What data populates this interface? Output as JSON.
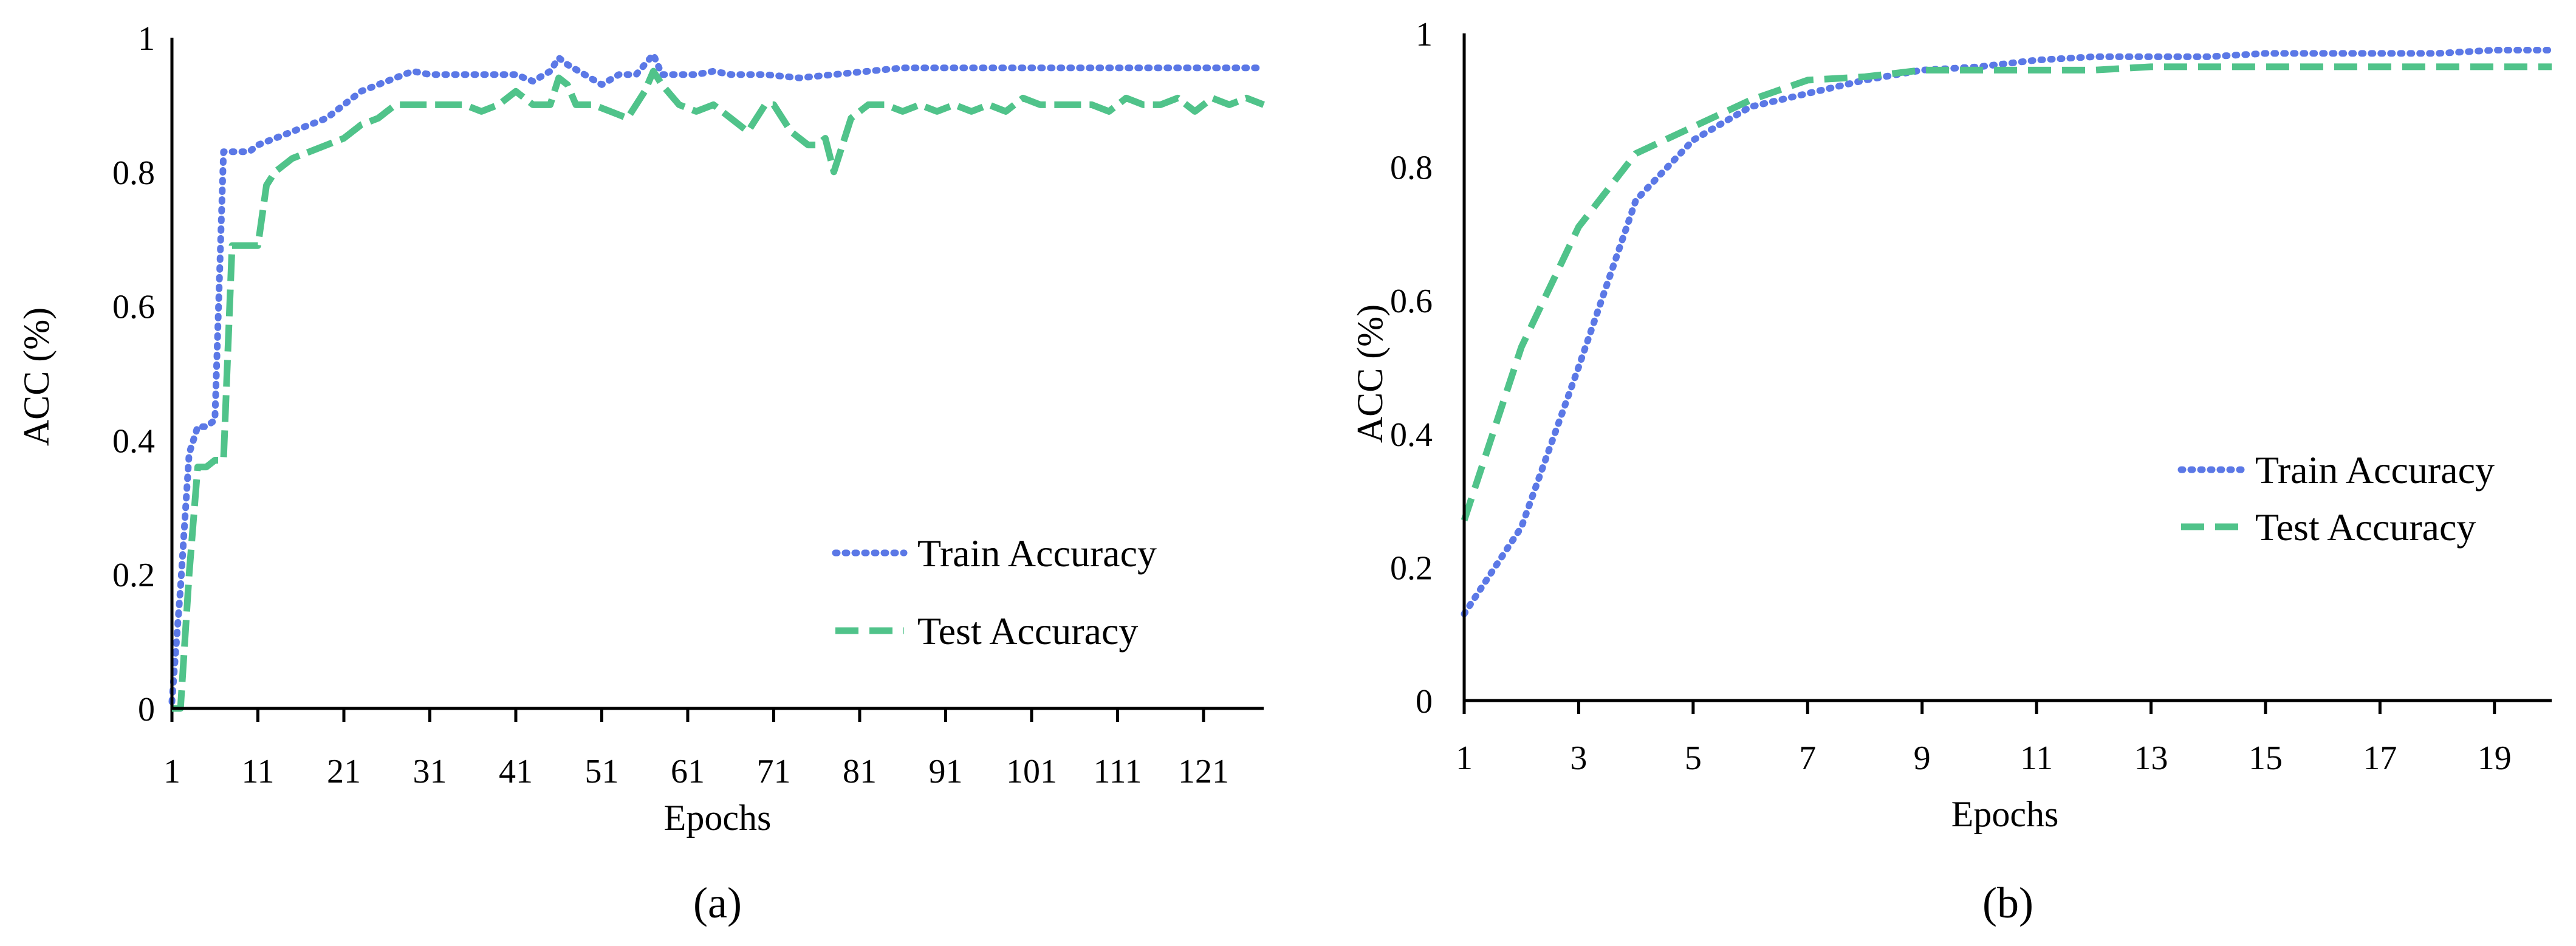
{
  "chart_data": [
    {
      "type": "line",
      "panel_label": "(a)",
      "xlabel": "Epochs",
      "ylabel": "ACC (%)",
      "xlim": [
        1,
        128
      ],
      "ylim": [
        0,
        1
      ],
      "xticks": [
        1,
        11,
        21,
        31,
        41,
        51,
        61,
        71,
        81,
        91,
        101,
        111,
        121
      ],
      "xtick_labels": [
        "1",
        "11",
        "21",
        "31",
        "41",
        "51",
        "61",
        "71",
        "81",
        "91",
        "101",
        "111",
        "121"
      ],
      "yticks": [
        0,
        0.2,
        0.4,
        0.6,
        0.8,
        1
      ],
      "ytick_labels": [
        "0",
        "0.2",
        "0.4",
        "0.6",
        "0.8",
        "1"
      ],
      "legend_position": "lower-right",
      "series": [
        {
          "name": "Train Accuracy",
          "label": "Train Accuracy",
          "color": "#5b78e6",
          "style": "dotted",
          "points": [
            [
              1,
              0.01
            ],
            [
              2,
              0.18
            ],
            [
              3,
              0.38
            ],
            [
              4,
              0.42
            ],
            [
              5,
              0.42
            ],
            [
              6,
              0.43
            ],
            [
              7,
              0.83
            ],
            [
              8,
              0.83
            ],
            [
              9,
              0.83
            ],
            [
              10,
              0.83
            ],
            [
              11,
              0.84
            ],
            [
              13,
              0.85
            ],
            [
              15,
              0.86
            ],
            [
              17,
              0.87
            ],
            [
              19,
              0.88
            ],
            [
              21,
              0.9
            ],
            [
              23,
              0.92
            ],
            [
              25,
              0.93
            ],
            [
              27,
              0.94
            ],
            [
              29,
              0.95
            ],
            [
              31,
              0.945
            ],
            [
              33,
              0.945
            ],
            [
              35,
              0.945
            ],
            [
              37,
              0.945
            ],
            [
              39,
              0.945
            ],
            [
              41,
              0.945
            ],
            [
              43,
              0.935
            ],
            [
              45,
              0.95
            ],
            [
              46,
              0.97
            ],
            [
              47,
              0.96
            ],
            [
              49,
              0.945
            ],
            [
              51,
              0.93
            ],
            [
              53,
              0.945
            ],
            [
              55,
              0.945
            ],
            [
              57,
              0.975
            ],
            [
              58,
              0.945
            ],
            [
              60,
              0.945
            ],
            [
              62,
              0.945
            ],
            [
              64,
              0.95
            ],
            [
              66,
              0.945
            ],
            [
              70,
              0.945
            ],
            [
              74,
              0.94
            ],
            [
              78,
              0.945
            ],
            [
              82,
              0.95
            ],
            [
              86,
              0.955
            ],
            [
              90,
              0.955
            ],
            [
              95,
              0.955
            ],
            [
              100,
              0.955
            ],
            [
              105,
              0.955
            ],
            [
              110,
              0.955
            ],
            [
              115,
              0.955
            ],
            [
              120,
              0.955
            ],
            [
              128,
              0.955
            ]
          ]
        },
        {
          "name": "Test Accuracy",
          "label": "Test Accuracy",
          "color": "#50c38a",
          "style": "mixed",
          "points": [
            [
              1,
              0.0
            ],
            [
              2,
              0.0
            ],
            [
              3,
              0.2
            ],
            [
              4,
              0.36
            ],
            [
              5,
              0.36
            ],
            [
              6,
              0.37
            ],
            [
              7,
              0.37
            ],
            [
              8,
              0.69
            ],
            [
              9,
              0.69
            ],
            [
              10,
              0.69
            ],
            [
              11,
              0.69
            ],
            [
              12,
              0.78
            ],
            [
              13,
              0.8
            ],
            [
              15,
              0.82
            ],
            [
              17,
              0.83
            ],
            [
              19,
              0.84
            ],
            [
              21,
              0.85
            ],
            [
              23,
              0.87
            ],
            [
              25,
              0.88
            ],
            [
              27,
              0.9
            ],
            [
              29,
              0.9
            ],
            [
              31,
              0.9
            ],
            [
              33,
              0.9
            ],
            [
              35,
              0.9
            ],
            [
              37,
              0.89
            ],
            [
              39,
              0.9
            ],
            [
              41,
              0.92
            ],
            [
              43,
              0.9
            ],
            [
              45,
              0.9
            ],
            [
              46,
              0.94
            ],
            [
              47,
              0.93
            ],
            [
              48,
              0.9
            ],
            [
              50,
              0.9
            ],
            [
              52,
              0.89
            ],
            [
              54,
              0.88
            ],
            [
              56,
              0.92
            ],
            [
              57,
              0.95
            ],
            [
              58,
              0.93
            ],
            [
              60,
              0.9
            ],
            [
              62,
              0.89
            ],
            [
              64,
              0.9
            ],
            [
              66,
              0.88
            ],
            [
              68,
              0.86
            ],
            [
              70,
              0.9
            ],
            [
              71,
              0.9
            ],
            [
              73,
              0.86
            ],
            [
              75,
              0.84
            ],
            [
              76,
              0.84
            ],
            [
              77,
              0.85
            ],
            [
              78,
              0.8
            ],
            [
              80,
              0.88
            ],
            [
              82,
              0.9
            ],
            [
              84,
              0.9
            ],
            [
              86,
              0.89
            ],
            [
              88,
              0.9
            ],
            [
              90,
              0.89
            ],
            [
              92,
              0.9
            ],
            [
              94,
              0.89
            ],
            [
              96,
              0.9
            ],
            [
              98,
              0.89
            ],
            [
              100,
              0.91
            ],
            [
              102,
              0.9
            ],
            [
              104,
              0.9
            ],
            [
              106,
              0.9
            ],
            [
              108,
              0.9
            ],
            [
              110,
              0.89
            ],
            [
              112,
              0.91
            ],
            [
              114,
              0.9
            ],
            [
              116,
              0.9
            ],
            [
              118,
              0.91
            ],
            [
              120,
              0.89
            ],
            [
              122,
              0.91
            ],
            [
              124,
              0.9
            ],
            [
              126,
              0.91
            ],
            [
              128,
              0.9
            ]
          ]
        }
      ]
    },
    {
      "type": "line",
      "panel_label": "(b)",
      "xlabel": "Epochs",
      "ylabel": "ACC (%)",
      "xlim": [
        1,
        20
      ],
      "ylim": [
        0,
        1
      ],
      "xticks": [
        1,
        3,
        5,
        7,
        9,
        11,
        13,
        15,
        17,
        19
      ],
      "xtick_labels": [
        "1",
        "3",
        "5",
        "7",
        "9",
        "11",
        "13",
        "15",
        "17",
        "19"
      ],
      "yticks": [
        0,
        0.2,
        0.4,
        0.6,
        0.8,
        1
      ],
      "ytick_labels": [
        "0",
        "0.2",
        "0.4",
        "0.6",
        "0.8",
        "1"
      ],
      "legend_position": "right",
      "series": [
        {
          "name": "Train Accuracy",
          "label": "Train Accuracy",
          "color": "#5b78e6",
          "style": "dotted",
          "points": [
            [
              1,
              0.13
            ],
            [
              2,
              0.26
            ],
            [
              3,
              0.5
            ],
            [
              4,
              0.75
            ],
            [
              5,
              0.84
            ],
            [
              6,
              0.89
            ],
            [
              7,
              0.91
            ],
            [
              8,
              0.93
            ],
            [
              9,
              0.945
            ],
            [
              10,
              0.95
            ],
            [
              11,
              0.96
            ],
            [
              12,
              0.965
            ],
            [
              13,
              0.965
            ],
            [
              14,
              0.965
            ],
            [
              15,
              0.97
            ],
            [
              16,
              0.97
            ],
            [
              17,
              0.97
            ],
            [
              18,
              0.97
            ],
            [
              19,
              0.975
            ],
            [
              20,
              0.975
            ]
          ]
        },
        {
          "name": "Test Accuracy",
          "label": "Test Accuracy",
          "color": "#50c38a",
          "style": "dashed",
          "points": [
            [
              1,
              0.27
            ],
            [
              2,
              0.53
            ],
            [
              3,
              0.71
            ],
            [
              4,
              0.82
            ],
            [
              5,
              0.86
            ],
            [
              6,
              0.9
            ],
            [
              7,
              0.93
            ],
            [
              8,
              0.935
            ],
            [
              9,
              0.945
            ],
            [
              10,
              0.945
            ],
            [
              11,
              0.945
            ],
            [
              12,
              0.945
            ],
            [
              13,
              0.95
            ],
            [
              14,
              0.95
            ],
            [
              15,
              0.95
            ],
            [
              16,
              0.95
            ],
            [
              17,
              0.95
            ],
            [
              18,
              0.95
            ],
            [
              19,
              0.95
            ],
            [
              20,
              0.95
            ]
          ]
        }
      ]
    }
  ]
}
